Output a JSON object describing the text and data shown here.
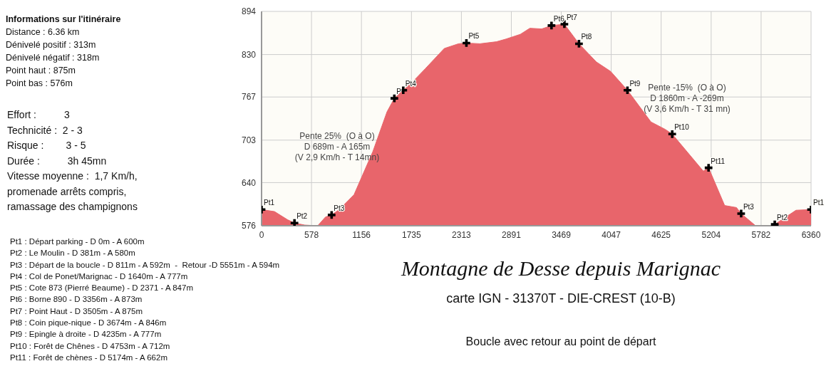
{
  "chart_data": {
    "type": "area",
    "title": "Montagne de Desse depuis Marignac",
    "subtitle": "carte IGN - 31370T - DIE-CREST  (10-B)",
    "xlim": [
      0,
      6360
    ],
    "xticks": [
      0,
      578,
      1156,
      1735,
      2313,
      2891,
      3469,
      4047,
      4625,
      5204,
      5782,
      6360
    ],
    "ylim": [
      576,
      894
    ],
    "yticks": [
      576,
      640,
      703,
      767,
      830,
      894
    ],
    "grid": true,
    "series": [
      {
        "color": "#e8656b",
        "x": [
          0,
          150,
          300,
          381,
          500,
          650,
          740,
          811,
          900,
          1070,
          1288,
          1452,
          1537,
          1640,
          1730,
          1895,
          2115,
          2280,
          2371,
          2527,
          2720,
          2830,
          2995,
          3105,
          3243,
          3356,
          3505,
          3674,
          3875,
          4040,
          4235,
          4507,
          4672,
          4753,
          5113,
          5174,
          5360,
          5497,
          5551,
          5718,
          5908,
          5940,
          6186,
          6360
        ],
        "values": [
          600,
          597,
          585,
          580,
          577,
          576,
          589,
          592,
          600,
          622,
          686,
          745,
          765,
          777,
          787,
          809,
          839,
          846,
          847,
          846,
          849,
          853,
          860,
          869,
          868,
          873,
          875,
          846,
          819,
          805,
          777,
          730,
          719,
          712,
          657,
          662,
          606,
          603,
          594,
          576,
          576,
          578,
          599,
          600
        ]
      },
      {
        "type": "scatter",
        "color": "#000000",
        "marker": "cross",
        "x": [
          0,
          381,
          811,
          1537,
          1640,
          2371,
          3356,
          3505,
          3674,
          4235,
          4753,
          5174,
          5551,
          5940,
          6360
        ],
        "values": [
          600,
          580,
          592,
          765,
          777,
          847,
          873,
          875,
          846,
          777,
          712,
          662,
          594,
          578,
          600
        ]
      }
    ],
    "annotations": [
      "Informations sur l'itinéraire\nDistance : 6.36 km\nDénivelé positif : 313m\nDénivelé négatif : 318m\nPoint haut : 875m\nPoint bas : 576m",
      "Effort :          3\nTechnicité :  2 - 3\nRisque :        3 - 5\nDurée :          3h 45mn\nVitesse moyenne :  1,7 Km/h,\npromenade arrêts compris,\nramassage des champignons",
      "Pt1 : Départ parking - D 0m - A 600m\nPt2 : Le Moulin - D 381m - A 580m\nPt3 : Départ de la boucle - D 811m - A 592m  -  Retour -D 5551m - A 594m\nPt4 : Col de Ponet/Marignac - D 1640m - A 777m\nPt5 : Cote 873 (Pierré Beaume) - D 2371 - A 847m\nPt6 : Borne 890 - D 3356m - A 873m\nPt7 : Point Haut - D 3505m - A 875m\nPt8 : Coin pique-nique - D 3674m - A 846m\nPt9 : Epingle à droite - D 4235m - A 777m\nPt10 : Forêt de Chênes - D 4753m - A 712m\nPt11 : Forêt de chènes - D 5174m - A 662m",
      "Boucle avec retour au point de départ",
      "Pente 25%  (O à O)\nD 689m - A 165m\n(V 2,9 Km/h - T 14mn)",
      "Pente -15%  (O à O)\nD 1860m - A -269m\n(V 3,6 Km/h - T 31 mn)",
      {
        "text": "Pt1",
        "x": 0,
        "y": 600
      },
      {
        "text": "Pt2",
        "x": 381,
        "y": 580
      },
      {
        "text": "Pt3",
        "x": 811,
        "y": 592
      },
      {
        "text": "P",
        "x": 1537,
        "y": 765
      },
      {
        "text": "Pt4",
        "x": 1640,
        "y": 777
      },
      {
        "text": "Pt5",
        "x": 2371,
        "y": 847
      },
      {
        "text": "Pt6",
        "x": 3356,
        "y": 873
      },
      {
        "text": "Pt7",
        "x": 3505,
        "y": 875
      },
      {
        "text": "Pt8",
        "x": 3674,
        "y": 846
      },
      {
        "text": "Pt9",
        "x": 4235,
        "y": 777
      },
      {
        "text": "Pt10",
        "x": 4753,
        "y": 712
      },
      {
        "text": "Pt11",
        "x": 5174,
        "y": 662
      },
      {
        "text": "Pt3",
        "x": 5551,
        "y": 594
      },
      {
        "text": "Pt2",
        "x": 5940,
        "y": 578
      },
      {
        "text": "Pt1",
        "x": 6360,
        "y": 600
      }
    ]
  }
}
